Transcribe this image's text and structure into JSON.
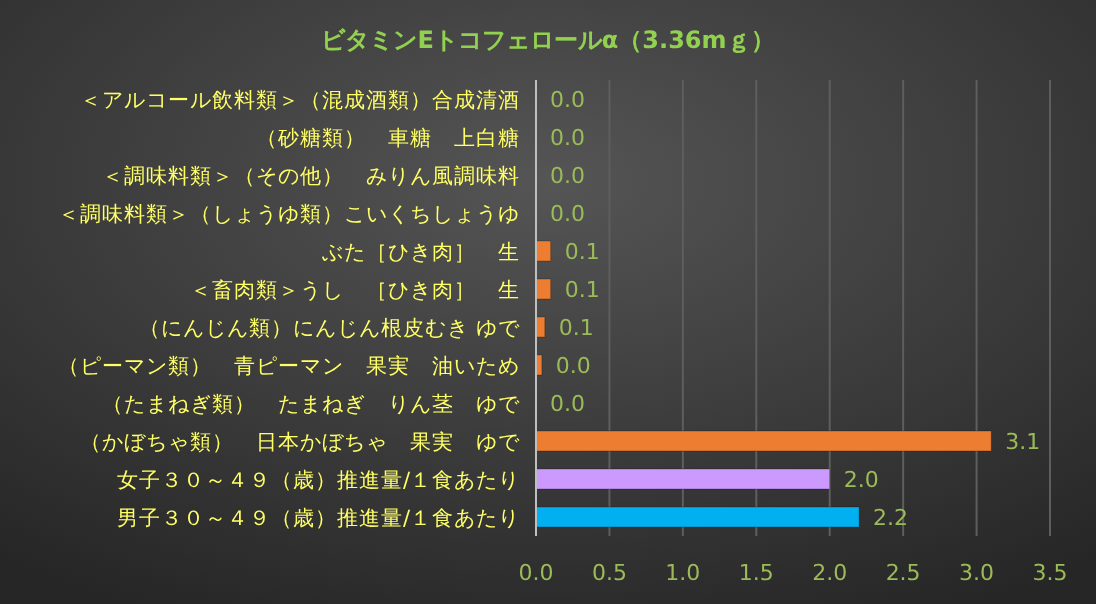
{
  "chart_data": {
    "type": "bar",
    "orientation": "horizontal",
    "title": "ビタミンEトコフェロールα（3.36mｇ）",
    "categories": [
      "＜アルコール飲料類＞（混成酒類）合成清酒",
      "（砂糖類）　車糖　上白糖",
      "＜調味料類＞（その他）　みりん風調味料",
      "＜調味料類＞（しょうゆ類）こいくちしょうゆ",
      "ぶた［ひき肉］　生",
      "＜畜肉類＞うし　［ひき肉］　生",
      "（にんじん類）にんじん根皮むき ゆで",
      "（ピーマン類）　青ピーマン　果実　油いため",
      "（たまねぎ類）　たまねぎ　りん茎　ゆで",
      "（かぼちゃ類）　日本かぼちゃ　果実　ゆで",
      "女子３０～４９（歳）推進量/１食あたり",
      "男子３０～４９（歳）推進量/１食あたり"
    ],
    "values": [
      0,
      0,
      0,
      0,
      0.1,
      0.1,
      0.06,
      0.04,
      0,
      3.1,
      2.0,
      2.2
    ],
    "value_labels": [
      "0.0",
      "0.0",
      "0.0",
      "0.0",
      "0.1",
      "0.1",
      "0.1",
      "0.0",
      "0.0",
      "3.1",
      "2.0",
      "2.2"
    ],
    "colors": [
      "#ed7d31",
      "#ed7d31",
      "#ed7d31",
      "#ed7d31",
      "#ed7d31",
      "#ed7d31",
      "#ed7d31",
      "#ed7d31",
      "#ed7d31",
      "#ed7d31",
      "#cc99ff",
      "#00b0f0"
    ],
    "xlim": [
      0,
      3.5
    ],
    "xticks": [
      {
        "value": 0,
        "label": "0.0"
      },
      0.5,
      {
        "value": 1,
        "label": "1.0"
      },
      1.5,
      {
        "value": 2,
        "label": "2.0"
      },
      2.5,
      {
        "value": 3,
        "label": "3.0"
      },
      3.5
    ],
    "grid": "x"
  }
}
